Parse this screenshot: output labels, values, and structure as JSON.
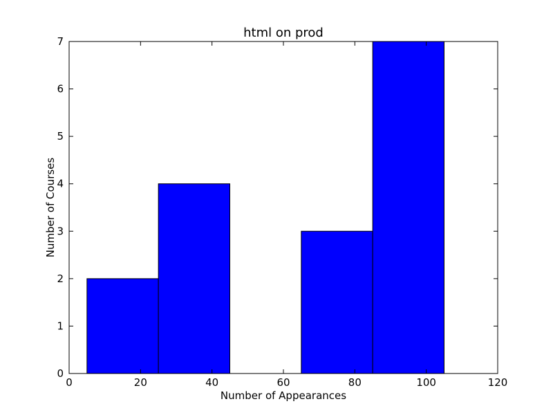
{
  "chart_data": {
    "type": "bar",
    "title": "html on prod",
    "xlabel": "Number of Appearances",
    "ylabel": "Number of Courses",
    "xlim": [
      0,
      120
    ],
    "ylim": [
      0,
      7
    ],
    "xticks": [
      0,
      20,
      40,
      60,
      80,
      100,
      120
    ],
    "yticks": [
      0,
      1,
      2,
      3,
      4,
      5,
      6,
      7
    ],
    "bins": [
      {
        "x0": 5,
        "x1": 25,
        "value": 2
      },
      {
        "x0": 25,
        "x1": 45,
        "value": 4
      },
      {
        "x0": 45,
        "x1": 65,
        "value": 0
      },
      {
        "x0": 65,
        "x1": 85,
        "value": 3
      },
      {
        "x0": 85,
        "x1": 105,
        "value": 7
      }
    ],
    "bar_color": "#0000ff",
    "grid": false,
    "legend": "none"
  }
}
